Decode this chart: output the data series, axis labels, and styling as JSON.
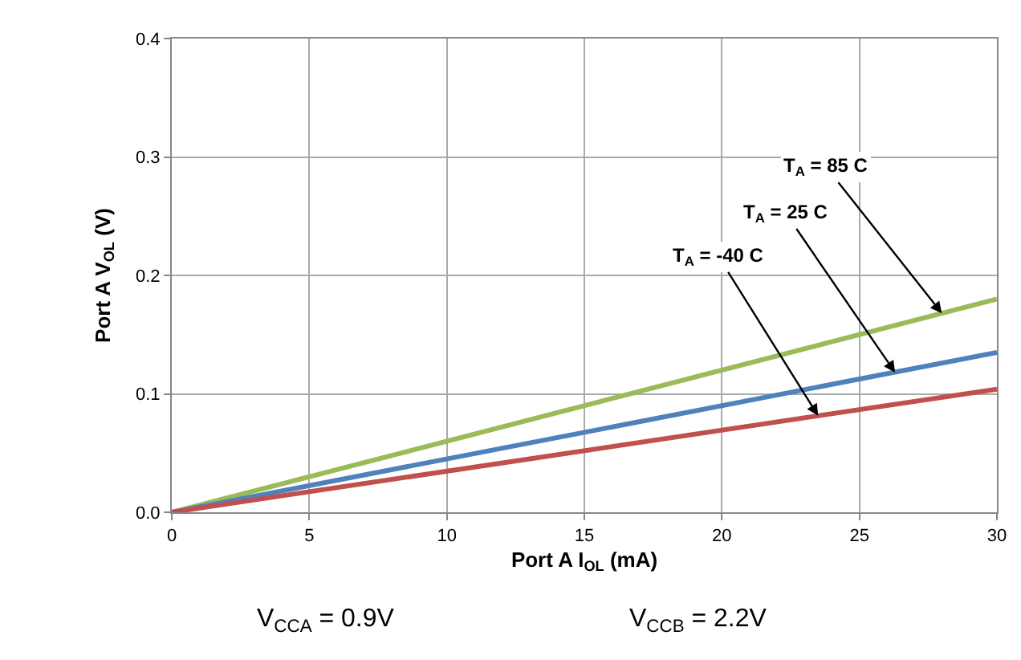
{
  "chart_data": {
    "type": "line",
    "xlabel": "Port A I$_{OL}$ (mA)",
    "ylabel": "Port A V$_{OL}$ (V)",
    "x": [
      0,
      30
    ],
    "series": [
      {
        "color": "#9bbb59",
        "values": [
          0,
          0.18
        ]
      },
      {
        "color": "#4f81bd",
        "values": [
          0,
          0.135
        ]
      },
      {
        "color": "#c0504d",
        "values": [
          0,
          0.104
        ]
      }
    ],
    "xlim": [
      0,
      30
    ],
    "xticks": [
      0,
      5,
      10,
      15,
      20,
      25,
      30
    ],
    "ylim": [
      0,
      0.4
    ],
    "yticks": [
      {
        "value": 0,
        "label": "0.0"
      },
      0.1,
      0.2,
      0.3,
      0.4
    ],
    "grid": true,
    "marker": "none",
    "line_style": "solid",
    "annotations": [
      {
        "text": "T$_{A}$ = 85 C",
        "x": 28,
        "y": 0.168
      },
      {
        "text": "T$_{A}$ = 25 C",
        "x": 26.3,
        "y": 0.118
      },
      {
        "text": "T$_{A}$ = -40 C",
        "x": 23.5,
        "y": 0.0815
      },
      "V$_{CCA}$ = 0.9V",
      "V$_{CCB}$ = 2.2V"
    ]
  }
}
